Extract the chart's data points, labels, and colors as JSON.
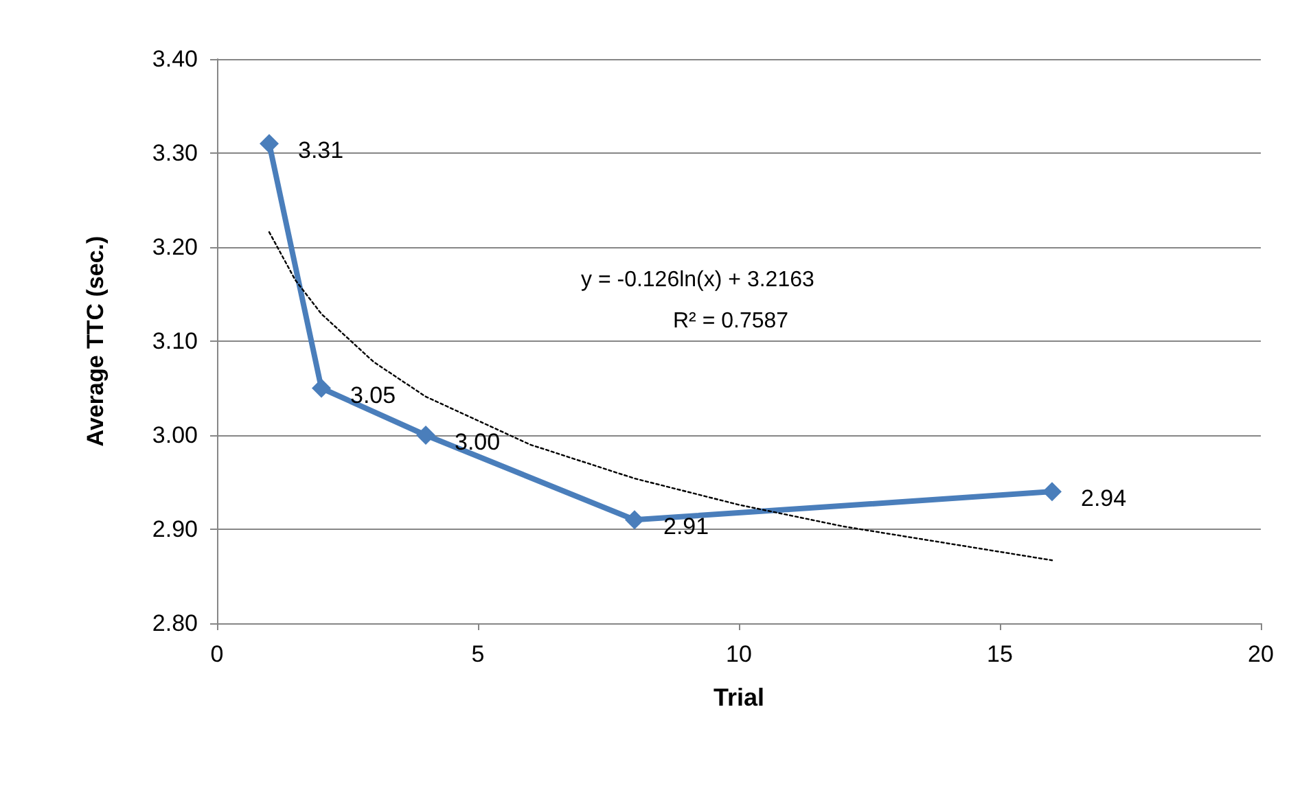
{
  "chart_data": {
    "type": "line",
    "xlabel": "Trial",
    "ylabel": "Average TTC (sec.)",
    "xlim": [
      0,
      20
    ],
    "xticks": [
      0,
      5,
      10,
      15,
      20
    ],
    "ylim": [
      2.8,
      3.4
    ],
    "yticks": [
      {
        "value": 2.8,
        "label": "2.80"
      },
      {
        "value": 2.9,
        "label": "2.90"
      },
      {
        "value": 3.0,
        "label": "3.00"
      },
      {
        "value": 3.1,
        "label": "3.10"
      },
      {
        "value": 3.2,
        "label": "3.20"
      },
      {
        "value": 3.3,
        "label": "3.30"
      },
      {
        "value": 3.4,
        "label": "3.40"
      }
    ],
    "grid": "y",
    "series": [
      {
        "color": "#4a7ebb",
        "marker": "diamond",
        "line_style": "solid",
        "x": [
          1,
          2,
          4,
          8,
          16
        ],
        "values": [
          3.31,
          3.05,
          3.0,
          2.91,
          2.94
        ],
        "value_labels": [
          "3.31",
          "3.05",
          "3.00",
          "2.91",
          "2.94"
        ]
      },
      {
        "color": "#000000",
        "marker": "none",
        "line_style": "dotted",
        "x": [
          1,
          1.5,
          2,
          3,
          4,
          6,
          8,
          10,
          12,
          16
        ],
        "values": [
          3.216,
          3.165,
          3.129,
          3.078,
          3.041,
          2.99,
          2.954,
          2.926,
          2.903,
          2.867
        ]
      }
    ],
    "annotations": [
      "y = -0.126ln(x) + 3.2163",
      "R² = 0.7587"
    ]
  }
}
